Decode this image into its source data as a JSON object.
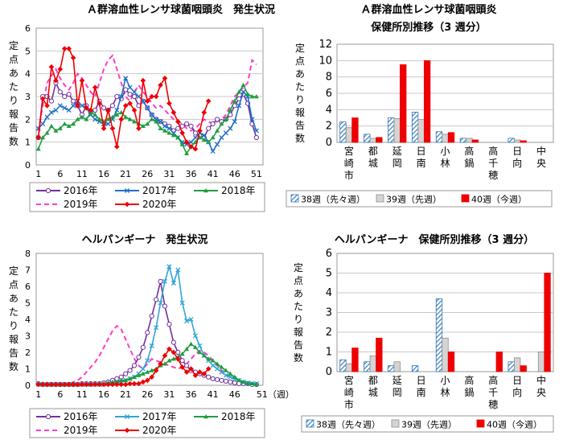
{
  "chart_data": [
    {
      "type": "line",
      "title": "Ａ群溶血性レンサ球菌咽頭炎　発生状況",
      "ylabel": "定点あたり報告数",
      "ylim": [
        0,
        6
      ],
      "yticks": [
        0,
        1,
        2,
        3,
        4,
        5,
        6
      ],
      "xticks": [
        1,
        6,
        11,
        16,
        21,
        26,
        31,
        36,
        41,
        46,
        51
      ],
      "x_suffix": "",
      "grid": true,
      "legend_placement": "bottom",
      "series": [
        {
          "name": "2016年",
          "color": "#7030a0",
          "marker": "circle-open",
          "dash": "",
          "values": [
            1.2,
            3.0,
            3.0,
            2.8,
            3.6,
            3.2,
            3.0,
            3.1,
            2.8,
            2.6,
            2.2,
            2.6,
            2.3,
            2.4,
            2.8,
            2.5,
            2.4,
            2.6,
            3.0,
            2.9,
            3.3,
            3.1,
            3.0,
            2.6,
            2.8,
            2.5,
            2.2,
            2.0,
            1.9,
            1.8,
            1.7,
            1.5,
            1.6,
            1.7,
            1.8,
            1.7,
            1.4,
            1.3,
            1.2,
            1.6,
            1.8,
            2.0,
            1.9,
            2.0,
            2.2,
            2.6,
            2.9,
            3.1,
            2.7,
            1.8,
            1.2
          ]
        },
        {
          "name": "2017年",
          "color": "#1f6fc5",
          "marker": "x",
          "dash": "",
          "values": [
            1.6,
            1.8,
            2.1,
            2.3,
            2.4,
            2.6,
            2.5,
            2.4,
            2.6,
            2.8,
            2.6,
            2.5,
            2.2,
            2.0,
            1.9,
            1.8,
            1.8,
            2.0,
            2.4,
            3.0,
            3.8,
            3.4,
            3.2,
            3.0,
            2.8,
            2.5,
            2.2,
            2.0,
            1.9,
            1.7,
            1.6,
            1.4,
            1.2,
            1.0,
            0.9,
            1.0,
            1.2,
            1.4,
            1.3,
            1.0,
            0.6,
            0.9,
            1.2,
            1.4,
            1.6,
            1.9,
            2.6,
            3.2,
            3.0,
            2.0,
            1.5
          ]
        },
        {
          "name": "2018年",
          "color": "#1e9e3e",
          "marker": "triangle",
          "dash": "",
          "values": [
            0.7,
            1.2,
            1.4,
            1.7,
            1.5,
            1.6,
            1.8,
            1.7,
            1.8,
            2.0,
            2.1,
            2.0,
            2.3,
            2.2,
            2.0,
            1.9,
            2.0,
            2.1,
            2.2,
            2.3,
            2.1,
            2.0,
            1.9,
            1.8,
            1.7,
            1.8,
            2.0,
            1.9,
            1.6,
            1.5,
            1.4,
            1.3,
            1.2,
            0.9,
            0.5,
            0.8,
            1.0,
            1.2,
            1.1,
            1.0,
            1.2,
            1.5,
            1.8,
            2.0,
            2.4,
            2.8,
            3.2,
            3.5,
            3.1,
            3.0,
            3.0
          ]
        },
        {
          "name": "2019年",
          "color": "#ff3cc8",
          "marker": "",
          "dash": "6,4",
          "values": [
            1.5,
            2.6,
            3.6,
            3.9,
            4.2,
            3.8,
            3.5,
            3.3,
            3.6,
            4.0,
            3.8,
            3.5,
            3.2,
            3.0,
            3.6,
            4.2,
            4.6,
            4.8,
            4.2,
            3.6,
            3.0,
            2.8,
            3.2,
            3.5,
            3.2,
            3.0,
            2.7,
            2.5,
            2.6,
            2.4,
            2.2,
            2.0,
            1.9,
            1.8,
            1.6,
            1.5,
            1.6,
            1.8,
            2.0,
            1.9,
            1.8,
            1.9,
            2.0,
            2.2,
            2.6,
            3.0,
            3.2,
            3.4,
            3.6,
            4.6,
            4.4
          ]
        },
        {
          "name": "2020年",
          "color": "#ee0000",
          "marker": "diamond",
          "dash": "",
          "values": [
            1.2,
            2.9,
            2.6,
            4.3,
            3.7,
            4.2,
            5.1,
            5.1,
            4.7,
            2.6,
            3.7,
            2.5,
            2.4,
            3.4,
            2.7,
            1.6,
            2.4,
            1.6,
            0.8,
            2.0,
            2.6,
            2.7,
            2.4,
            1.6,
            3.7,
            2.8,
            3.0,
            3.0,
            3.5,
            3.8,
            2.7,
            2.3,
            1.9,
            1.4,
            1.0,
            0.8,
            0.7,
            1.5,
            2.3,
            2.8
          ]
        }
      ]
    },
    {
      "type": "bar",
      "title": "Ａ群溶血性レンサ球菌咽頭炎",
      "subtitle": "保健所別推移（3 週分）",
      "ylabel": "定点あたり報告数",
      "ylim": [
        0,
        12
      ],
      "yticks": [
        0,
        2,
        4,
        6,
        8,
        10,
        12
      ],
      "grid": true,
      "categories": [
        "宮崎市",
        "都城",
        "延岡",
        "日南",
        "小林",
        "高鍋",
        "高千穂",
        "日向",
        "中央"
      ],
      "series": [
        {
          "name": "38週（先々週）",
          "style": "hatch",
          "values": [
            2.5,
            1.0,
            3.0,
            3.7,
            1.3,
            0.5,
            0,
            0.5,
            0
          ]
        },
        {
          "name": "39週（先週）",
          "style": "gray",
          "values": [
            1.8,
            0.5,
            2.9,
            2.8,
            1.0,
            0.5,
            0,
            0.3,
            0
          ]
        },
        {
          "name": "40週（今週）",
          "style": "red",
          "values": [
            3.0,
            0.6,
            9.5,
            10.0,
            1.2,
            0.3,
            0,
            0.2,
            0
          ]
        }
      ]
    },
    {
      "type": "line",
      "title": "ヘルパンギーナ　発生状況",
      "ylabel": "定点あたり報告数",
      "ylim": [
        0,
        8
      ],
      "yticks": [
        0,
        1,
        2,
        3,
        4,
        5,
        6,
        7,
        8
      ],
      "xticks": [
        1,
        6,
        11,
        16,
        21,
        26,
        31,
        36,
        41,
        46,
        51
      ],
      "x_suffix": "（週）",
      "grid": false,
      "legend_placement": "bottom",
      "series": [
        {
          "name": "2016年",
          "color": "#7030a0",
          "marker": "circle-open",
          "dash": "",
          "values": [
            0.1,
            0.05,
            0.05,
            0.05,
            0.05,
            0.05,
            0.05,
            0.05,
            0.05,
            0.05,
            0.1,
            0.1,
            0.1,
            0.1,
            0.1,
            0.15,
            0.2,
            0.3,
            0.4,
            0.5,
            0.7,
            0.9,
            1.2,
            1.7,
            2.3,
            3.2,
            4.2,
            5.2,
            6.3,
            4.8,
            3.7,
            2.6,
            2.0,
            1.5,
            1.2,
            0.9,
            0.8,
            0.7,
            0.6,
            0.5,
            0.4,
            0.35,
            0.3,
            0.25,
            0.2,
            0.15,
            0.1,
            0.1,
            0.1,
            0.05,
            0.05
          ]
        },
        {
          "name": "2017年",
          "color": "#2fa4d8",
          "marker": "x",
          "dash": "",
          "values": [
            0.05,
            0.05,
            0.05,
            0.05,
            0.05,
            0.05,
            0.05,
            0.05,
            0.05,
            0.05,
            0.05,
            0.05,
            0.05,
            0.05,
            0.05,
            0.05,
            0.1,
            0.1,
            0.15,
            0.2,
            0.3,
            0.4,
            0.5,
            0.7,
            1.0,
            1.5,
            2.4,
            3.5,
            5.0,
            6.3,
            7.2,
            6.2,
            7.0,
            5.0,
            3.9,
            4.0,
            3.0,
            2.4,
            1.8,
            1.5,
            1.2,
            1.0,
            0.8,
            0.6,
            0.5,
            0.4,
            0.3,
            0.2,
            0.15,
            0.1,
            0.1
          ]
        },
        {
          "name": "2018年",
          "color": "#1e9e3e",
          "marker": "triangle",
          "dash": "",
          "values": [
            0.1,
            0.1,
            0.05,
            0.05,
            0.05,
            0.05,
            0.05,
            0.05,
            0.05,
            0.05,
            0.05,
            0.05,
            0.05,
            0.1,
            0.1,
            0.1,
            0.15,
            0.2,
            0.2,
            0.3,
            0.3,
            0.4,
            0.5,
            0.6,
            0.7,
            0.8,
            0.9,
            1.0,
            1.2,
            1.3,
            1.5,
            1.6,
            1.7,
            1.9,
            2.2,
            2.5,
            2.3,
            2.0,
            1.8,
            1.6,
            1.5,
            1.3,
            1.1,
            0.9,
            0.7,
            0.5,
            0.3,
            0.2,
            0.1,
            0.1,
            0.05
          ]
        },
        {
          "name": "2019年",
          "color": "#ff3cc8",
          "marker": "",
          "dash": "6,4",
          "values": [
            0.05,
            0.05,
            0.05,
            0.05,
            0.05,
            0.05,
            0.1,
            0.1,
            0.2,
            0.3,
            0.5,
            0.8,
            1.1,
            1.4,
            1.8,
            2.3,
            2.8,
            3.3,
            3.6,
            3.4,
            2.8,
            2.2,
            1.6,
            1.2,
            1.0,
            1.3,
            1.6,
            1.5,
            1.4,
            1.3,
            1.2,
            1.1,
            1.0,
            1.1,
            1.3,
            1.6,
            1.9,
            2.1,
            2.0,
            1.8,
            1.5,
            1.2,
            0.9,
            0.7,
            0.5,
            0.4,
            0.3,
            0.2,
            0.2,
            0.1,
            0.1
          ]
        },
        {
          "name": "2020年",
          "color": "#ee0000",
          "marker": "diamond",
          "dash": "",
          "values": [
            0.05,
            0.05,
            0.05,
            0.05,
            0.05,
            0.05,
            0.05,
            0.05,
            0.05,
            0.05,
            0.05,
            0.05,
            0.05,
            0.05,
            0.05,
            0.05,
            0.05,
            0.05,
            0.05,
            0.05,
            0.05,
            0.1,
            0.1,
            0.1,
            0.2,
            0.3,
            0.5,
            0.9,
            1.3,
            1.8,
            2.2,
            2.0,
            1.6,
            1.1,
            0.8,
            1.0,
            0.6,
            0.8,
            0.7,
            1.0
          ]
        }
      ]
    },
    {
      "type": "bar",
      "title": "ヘルパンギーナ　保健所別推移（3 週分）",
      "subtitle": "",
      "ylabel": "定点あたり報告数",
      "ylim": [
        0,
        6
      ],
      "yticks": [
        0,
        1,
        2,
        3,
        4,
        5,
        6
      ],
      "grid": true,
      "categories": [
        "宮崎市",
        "都城",
        "延岡",
        "日南",
        "小林",
        "高鍋",
        "高千穂",
        "日向",
        "中央"
      ],
      "series": [
        {
          "name": "38週（先々週）",
          "style": "hatch",
          "values": [
            0.6,
            0.5,
            0.3,
            0.3,
            3.7,
            0,
            0,
            0.5,
            0
          ]
        },
        {
          "name": "39週（先週）",
          "style": "gray",
          "values": [
            0.4,
            0.8,
            0.5,
            0,
            1.7,
            0,
            0,
            0.7,
            1.0
          ]
        },
        {
          "name": "40週（今週）",
          "style": "red",
          "values": [
            1.2,
            1.7,
            0,
            0,
            1.0,
            0,
            1.0,
            0.3,
            5.0
          ]
        }
      ]
    }
  ]
}
